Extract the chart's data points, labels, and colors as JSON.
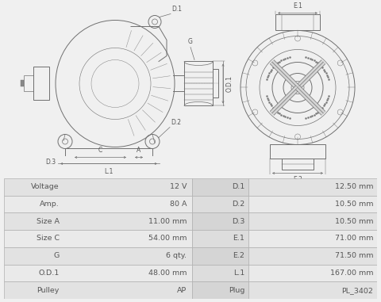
{
  "bg_color": "#f0f0f0",
  "line_color": "#707070",
  "text_color": "#555555",
  "dim_color": "#555555",
  "table_rows": [
    [
      "Voltage",
      "12 V",
      "D.1",
      "12.50 mm"
    ],
    [
      "Amp.",
      "80 A",
      "D.2",
      "10.50 mm"
    ],
    [
      "Size A",
      "11.00 mm",
      "D.3",
      "10.50 mm"
    ],
    [
      "Size C",
      "54.00 mm",
      "E.1",
      "71.00 mm"
    ],
    [
      "G",
      "6 qty.",
      "E.2",
      "71.50 mm"
    ],
    [
      "O.D.1",
      "48.00 mm",
      "L.1",
      "167.00 mm"
    ],
    [
      "Pulley",
      "AP",
      "Plug",
      "PL_3402"
    ]
  ],
  "table_font": 6.8,
  "label_font": 5.5
}
